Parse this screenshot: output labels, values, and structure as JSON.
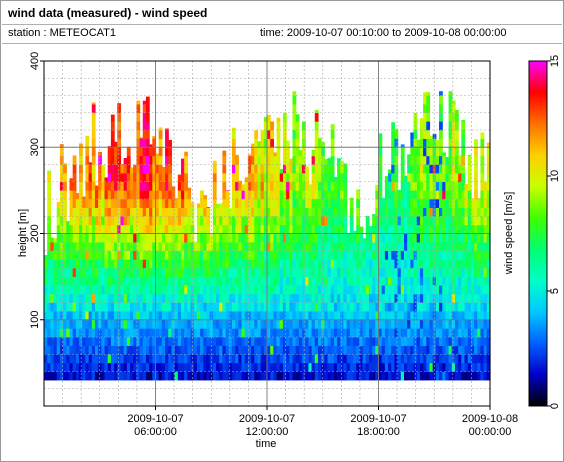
{
  "header": {
    "title": "wind data (measured) - wind speed",
    "station": "station : METEOCAT1",
    "time_range": "time: 2009-10-07 00:10:00 to 2009-10-08 00:00:00"
  },
  "chart_data": {
    "type": "heatmap",
    "xlabel": "time",
    "ylabel": "height [m]",
    "colorbar_label": "wind speed [m/s]",
    "xlim": [
      0,
      24
    ],
    "ylim": [
      0,
      400
    ],
    "zlim": [
      0,
      15
    ],
    "x_ticks": [
      {
        "value": 6,
        "date": "2009-10-07",
        "time": "06:00:00"
      },
      {
        "value": 12,
        "date": "2009-10-07",
        "time": "12:00:00"
      },
      {
        "value": 18,
        "date": "2009-10-07",
        "time": "18:00:00"
      },
      {
        "value": 24,
        "date": "2009-10-08",
        "time": "00:00:00"
      }
    ],
    "y_ticks": [
      {
        "value": 100,
        "label": "100"
      },
      {
        "value": 200,
        "label": "200"
      },
      {
        "value": 300,
        "label": "300"
      },
      {
        "value": 400,
        "label": "400"
      }
    ],
    "colorbar_ticks": [
      {
        "value": 0,
        "label": "0"
      },
      {
        "value": 5,
        "label": "5"
      },
      {
        "value": 10,
        "label": "10"
      },
      {
        "value": 15,
        "label": "15"
      }
    ],
    "grid": true,
    "height_range_m": [
      30,
      365
    ],
    "colormap": [
      "#000000",
      "#0000c8",
      "#0060ff",
      "#00c8ff",
      "#00ffc8",
      "#00ff70",
      "#40ff00",
      "#c8ff00",
      "#ffd000",
      "#ff7000",
      "#ff0000",
      "#ff00ff"
    ]
  }
}
